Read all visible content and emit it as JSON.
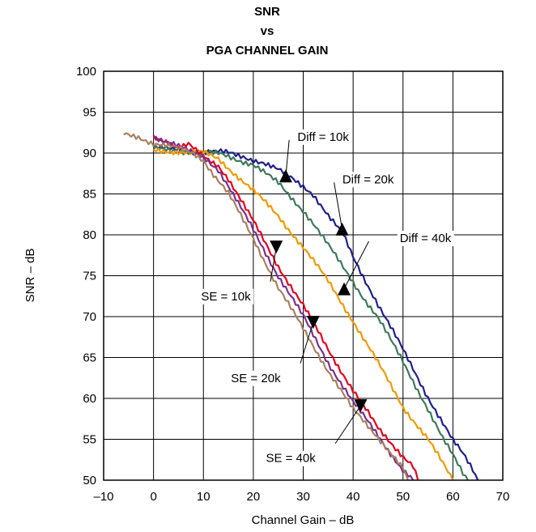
{
  "chart_data": {
    "type": "line",
    "title": [
      "SNR",
      "vs",
      "PGA CHANNEL GAIN"
    ],
    "xlabel": "Channel Gain – dB",
    "ylabel": "SNR – dB",
    "xlim": [
      -10,
      70
    ],
    "ylim": [
      50,
      100
    ],
    "xticks": [
      -10,
      0,
      10,
      20,
      30,
      40,
      50,
      60,
      70
    ],
    "xtick_labels": [
      "–10",
      "0",
      "10",
      "20",
      "30",
      "40",
      "50",
      "60",
      "70"
    ],
    "yticks": [
      50,
      55,
      60,
      65,
      70,
      75,
      80,
      85,
      90,
      95,
      100
    ],
    "ytick_labels": [
      "50",
      "55",
      "60",
      "65",
      "70",
      "75",
      "80",
      "85",
      "90",
      "95",
      "100"
    ],
    "grid": true,
    "series": [
      {
        "name": "Diff = 10k",
        "color": "#1f1f8f",
        "points": [
          [
            0,
            90.6
          ],
          [
            5,
            90.4
          ],
          [
            10,
            90.1
          ],
          [
            13,
            90.1
          ],
          [
            15,
            90
          ],
          [
            18,
            89.6
          ],
          [
            20,
            89.2
          ],
          [
            22,
            88.8
          ],
          [
            25,
            87.9
          ],
          [
            28,
            86.8
          ],
          [
            30,
            86
          ],
          [
            32,
            85
          ],
          [
            35,
            82.3
          ],
          [
            38,
            80
          ],
          [
            40,
            77.3
          ],
          [
            45,
            71.5
          ],
          [
            50,
            65.9
          ],
          [
            55,
            60.2
          ],
          [
            60,
            54.8
          ],
          [
            62,
            53.2
          ],
          [
            64,
            51.3
          ],
          [
            65,
            50
          ]
        ]
      },
      {
        "name": "Diff = 20k",
        "color": "#3d7a5a",
        "points": [
          [
            0,
            90.5
          ],
          [
            5,
            90.3
          ],
          [
            10,
            90
          ],
          [
            13,
            89.9
          ],
          [
            15,
            89.6
          ],
          [
            20,
            88.6
          ],
          [
            25,
            86.3
          ],
          [
            30,
            83
          ],
          [
            32,
            81.4
          ],
          [
            35,
            78.7
          ],
          [
            40,
            74.3
          ],
          [
            42,
            72.4
          ],
          [
            45,
            69.8
          ],
          [
            50,
            64.5
          ],
          [
            55,
            58.7
          ],
          [
            58,
            55
          ],
          [
            60,
            53
          ],
          [
            62,
            50.9
          ],
          [
            63,
            50
          ]
        ]
      },
      {
        "name": "Diff = 40k",
        "color": "#f29a00",
        "points": [
          [
            0,
            90.3
          ],
          [
            5,
            90.2
          ],
          [
            10,
            90
          ],
          [
            13,
            89.3
          ],
          [
            15,
            88.2
          ],
          [
            20,
            85.4
          ],
          [
            25,
            82.3
          ],
          [
            30,
            78.5
          ],
          [
            35,
            74.3
          ],
          [
            40,
            69.5
          ],
          [
            45,
            64.3
          ],
          [
            50,
            59
          ],
          [
            55,
            55
          ],
          [
            57,
            53
          ],
          [
            60,
            50
          ]
        ]
      },
      {
        "name": "SE = 10k",
        "color": "#e8001c",
        "points": [
          [
            0,
            92
          ],
          [
            3,
            91.4
          ],
          [
            5,
            90.6
          ],
          [
            7,
            91
          ],
          [
            10,
            89.5
          ],
          [
            13,
            88.5
          ],
          [
            15,
            86.9
          ],
          [
            20,
            81.6
          ],
          [
            25,
            76.2
          ],
          [
            30,
            71.3
          ],
          [
            35,
            66
          ],
          [
            40,
            61
          ],
          [
            45,
            56.3
          ],
          [
            50,
            53
          ],
          [
            52,
            51.8
          ],
          [
            53,
            50
          ]
        ]
      },
      {
        "name": "SE = 20k",
        "color": "#7b2f8e",
        "points": [
          [
            0,
            92.1
          ],
          [
            3,
            91.3
          ],
          [
            5,
            90.8
          ],
          [
            7,
            90.2
          ],
          [
            10,
            89.6
          ],
          [
            13,
            88
          ],
          [
            15,
            85.9
          ],
          [
            20,
            80.6
          ],
          [
            25,
            75
          ],
          [
            30,
            70
          ],
          [
            35,
            64.4
          ],
          [
            40,
            59.5
          ],
          [
            45,
            55.5
          ],
          [
            50,
            51.2
          ],
          [
            52,
            50
          ]
        ]
      },
      {
        "name": "SE = 40k",
        "color": "#a88060",
        "points": [
          [
            -6,
            92.3
          ],
          [
            -3,
            92
          ],
          [
            0,
            91.2
          ],
          [
            3,
            90.8
          ],
          [
            5,
            90.5
          ],
          [
            8,
            90
          ],
          [
            10,
            89.2
          ],
          [
            12,
            87.4
          ],
          [
            15,
            85
          ],
          [
            20,
            79.6
          ],
          [
            25,
            73.5
          ],
          [
            30,
            68.5
          ],
          [
            35,
            63.4
          ],
          [
            40,
            58.6
          ],
          [
            45,
            55.3
          ],
          [
            48,
            53
          ],
          [
            50,
            51.4
          ],
          [
            51,
            50
          ]
        ]
      }
    ],
    "annotations": [
      {
        "text": "Diff = 10k",
        "label_at": [
          34,
          92
        ],
        "arrow_to": [
          26.5,
          87.2
        ]
      },
      {
        "text": "Diff = 20k",
        "label_at": [
          43,
          86.8
        ],
        "arrow_to": [
          37.8,
          80.7
        ]
      },
      {
        "text": "Diff = 40k",
        "label_at": [
          54.5,
          79.6
        ],
        "arrow_to": [
          38.2,
          73.4
        ]
      },
      {
        "text": "SE = 10k",
        "label_at": [
          14.5,
          72.5
        ],
        "arrow_to": [
          24.6,
          78.5
        ]
      },
      {
        "text": "SE = 20k",
        "label_at": [
          20.5,
          62.5
        ],
        "arrow_to": [
          32,
          69.3
        ]
      },
      {
        "text": "SE = 40k",
        "label_at": [
          27.5,
          52.7
        ],
        "arrow_to": [
          41.5,
          59.1
        ]
      }
    ]
  }
}
